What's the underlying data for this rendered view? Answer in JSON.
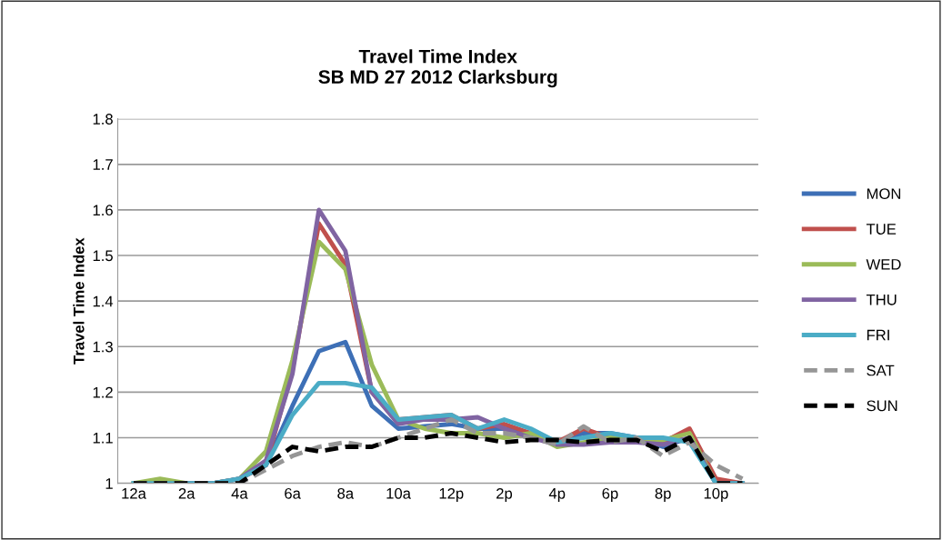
{
  "chart_data": {
    "type": "line",
    "title": "Travel Time Index\nSB MD 27 2012 Clarksburg",
    "ylabel": "Travel Time Index",
    "categories": [
      "12a",
      null,
      "2a",
      null,
      "4a",
      null,
      "6a",
      null,
      "8a",
      null,
      "10a",
      null,
      "12p",
      null,
      "2p",
      null,
      "4p",
      null,
      "6p",
      null,
      "8p",
      null,
      "10p",
      null
    ],
    "ylim": [
      1,
      1.8
    ],
    "yticks": [
      {
        "value": 1,
        "label": "1"
      },
      1.1,
      1.2,
      1.3,
      1.4,
      1.5,
      1.6,
      1.7,
      1.8
    ],
    "grid": "y",
    "legend": "right",
    "marker": "none",
    "series": [
      {
        "name": "MON",
        "color": "#3d6fb6",
        "line_style": "solid",
        "values": [
          1.0,
          1.0,
          1.0,
          1.0,
          1.01,
          1.04,
          1.17,
          1.29,
          1.31,
          1.17,
          1.12,
          1.125,
          1.13,
          1.12,
          1.12,
          1.11,
          1.09,
          1.11,
          1.11,
          1.1,
          1.08,
          1.1,
          1.0,
          1.0
        ]
      },
      {
        "name": "TUE",
        "color": "#c0504d",
        "line_style": "solid",
        "values": [
          null,
          null,
          null,
          null,
          1.01,
          1.04,
          1.25,
          1.57,
          1.48,
          1.2,
          1.14,
          1.145,
          1.15,
          1.12,
          1.13,
          1.11,
          1.09,
          1.12,
          1.1,
          1.1,
          1.09,
          1.12,
          1.01,
          1.0
        ]
      },
      {
        "name": "WED",
        "color": "#9bbb59",
        "line_style": "solid",
        "values": [
          1.0,
          1.01,
          1.0,
          1.0,
          1.01,
          1.07,
          1.27,
          1.53,
          1.47,
          1.26,
          1.14,
          1.12,
          1.11,
          1.11,
          1.1,
          1.11,
          1.08,
          1.09,
          1.1,
          1.095,
          1.095,
          1.11,
          1.0,
          1.0
        ]
      },
      {
        "name": "THU",
        "color": "#8064a2",
        "line_style": "solid",
        "values": [
          null,
          null,
          1.0,
          1.0,
          1.01,
          1.05,
          1.24,
          1.6,
          1.51,
          1.2,
          1.13,
          1.14,
          1.14,
          1.145,
          1.12,
          1.1,
          1.085,
          1.085,
          1.09,
          1.09,
          1.085,
          1.1,
          1.0,
          1.0
        ]
      },
      {
        "name": "FRI",
        "color": "#4bacc6",
        "line_style": "solid",
        "values": [
          1.0,
          1.0,
          1.0,
          1.0,
          1.01,
          1.04,
          1.15,
          1.22,
          1.22,
          1.21,
          1.14,
          1.145,
          1.15,
          1.12,
          1.14,
          1.12,
          1.09,
          1.1,
          1.11,
          1.1,
          1.1,
          1.09,
          1.0,
          1.0
        ]
      },
      {
        "name": "SAT",
        "color": "#969696",
        "line_style": "dashed",
        "values": [
          1.0,
          1.0,
          1.0,
          1.0,
          1.0,
          1.03,
          1.06,
          1.08,
          1.09,
          1.08,
          1.1,
          1.12,
          1.14,
          1.11,
          1.11,
          1.1,
          1.085,
          1.125,
          1.09,
          1.1,
          1.06,
          1.09,
          1.04,
          1.01
        ]
      },
      {
        "name": "SUN",
        "color": "#000000",
        "line_style": "dashed",
        "values": [
          1.0,
          1.0,
          1.0,
          1.0,
          1.0,
          1.04,
          1.08,
          1.07,
          1.08,
          1.08,
          1.1,
          1.1,
          1.11,
          1.1,
          1.09,
          1.095,
          1.095,
          1.09,
          1.095,
          1.095,
          1.07,
          1.1,
          1.0,
          1.0
        ]
      }
    ]
  }
}
